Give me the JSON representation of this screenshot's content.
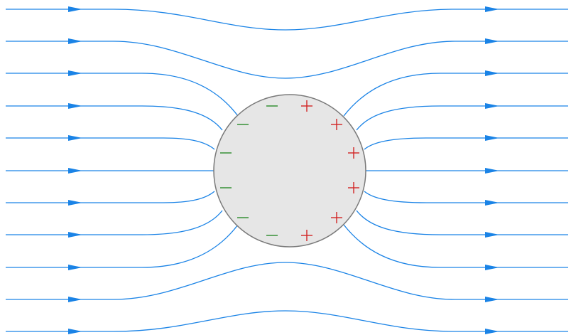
{
  "colors": {
    "field_line": "#1a83e6",
    "sphere_fill": "#e6e6e6",
    "sphere_stroke": "#7a7a7a",
    "positive_charge": "#d22424",
    "negative_charge": "#2a8a2a"
  },
  "field_lines": {
    "count": 11,
    "direction": "left-to-right"
  },
  "charges": {
    "positive_symbol": "+",
    "negative_symbol": "−",
    "positive_count": 6,
    "negative_count": 6
  }
}
